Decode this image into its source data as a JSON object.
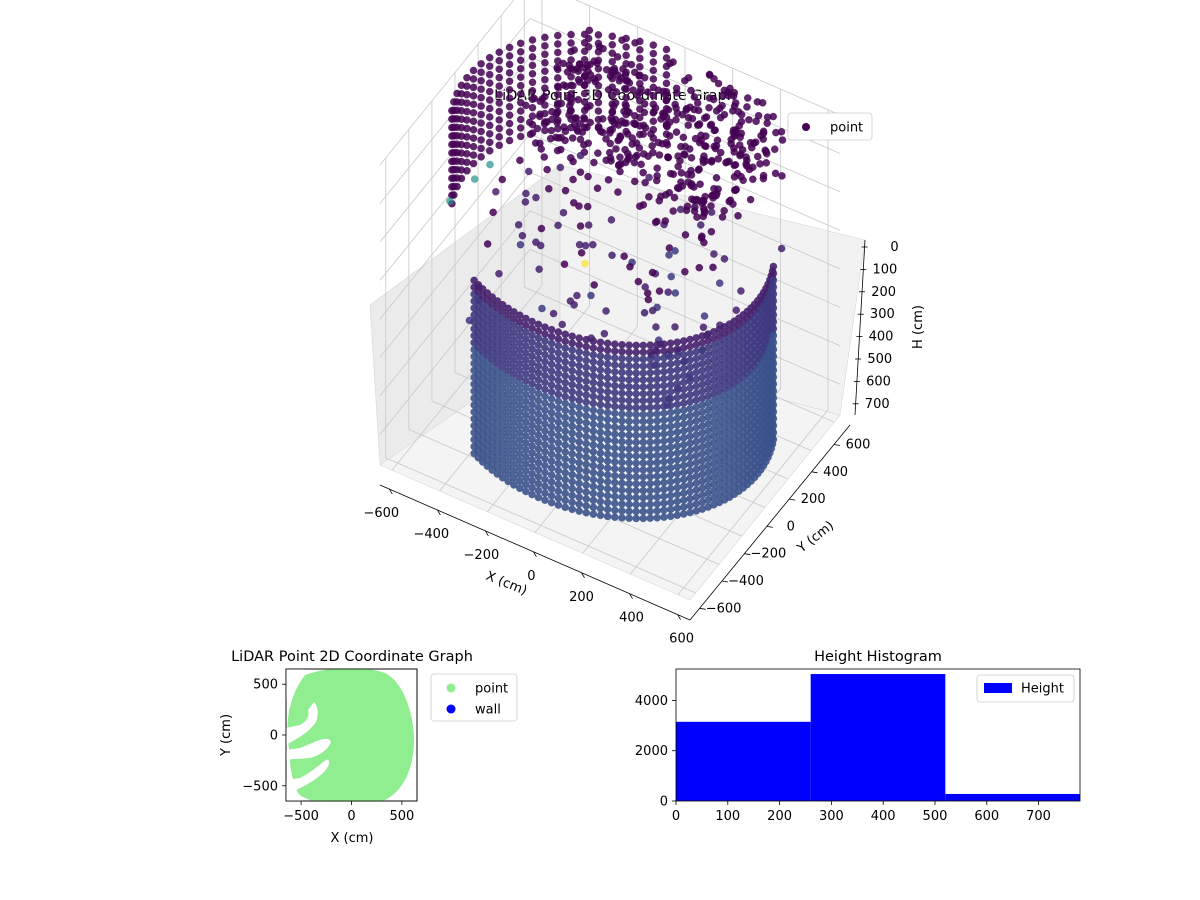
{
  "colors": {
    "viridis_low": "#440154",
    "viridis_mid": "#3b528b",
    "viridis_teal": "#21918c",
    "viridis_high": "#fde725",
    "point_2d": "#90ee90",
    "wall_2d": "#0000ff",
    "histogram": "#0000ff"
  },
  "chart_data": [
    {
      "type": "scatter",
      "projection": "3d",
      "title": "LiDAR Point 3D Coordinate Graph",
      "xlabel": "X (cm)",
      "ylabel": "Y (cm)",
      "zlabel": "H (cm)",
      "x_ticks": [
        "−600",
        "−400",
        "−200",
        "0",
        "200",
        "400",
        "600"
      ],
      "y_ticks": [
        "−600",
        "−400",
        "−200",
        "0",
        "200",
        "400",
        "600"
      ],
      "z_ticks": [
        "0",
        "100",
        "200",
        "300",
        "400",
        "500",
        "600",
        "700"
      ],
      "xlim": [
        -650,
        650
      ],
      "ylim": [
        -650,
        650
      ],
      "zlim": [
        0,
        780
      ],
      "z_inverted": true,
      "colormap": "viridis",
      "legend": {
        "entries": [
          "point"
        ],
        "placement": "upper right"
      },
      "grid": true,
      "outlier_points": [
        {
          "x": -640,
          "y": 150,
          "h": 330
        },
        {
          "x": -600,
          "y": 200,
          "h": 300
        },
        {
          "x": -710,
          "y": 80,
          "h": 380
        },
        {
          "x": -250,
          "y": 300,
          "h": 500
        }
      ]
    },
    {
      "type": "scatter",
      "title": "LiDAR Point 2D Coordinate Graph",
      "xlabel": "X (cm)",
      "ylabel": "Y (cm)",
      "x_ticks": [
        "−500",
        "0",
        "500"
      ],
      "y_ticks": [
        "500",
        "0",
        "−500"
      ],
      "xlim": [
        -650,
        650
      ],
      "ylim": [
        -650,
        650
      ],
      "series": [
        {
          "name": "point",
          "color": "#90ee90",
          "shape": "disc approx. radius 620 with gaps on the left side"
        },
        {
          "name": "wall",
          "color": "#0000ff",
          "values": []
        }
      ],
      "legend": {
        "entries": [
          "point",
          "wall"
        ],
        "placement": "outside right"
      }
    },
    {
      "type": "bar",
      "title": "Height Histogram",
      "xlabel": "",
      "ylabel": "",
      "bins": [
        [
          0,
          260
        ],
        [
          260,
          520
        ],
        [
          520,
          780
        ]
      ],
      "values": [
        3150,
        5050,
        280
      ],
      "x_ticks": [
        "0",
        "100",
        "200",
        "300",
        "400",
        "500",
        "600",
        "700"
      ],
      "y_ticks": [
        "0",
        "2000",
        "4000"
      ],
      "xlim": [
        0,
        780
      ],
      "ylim": [
        0,
        5250
      ],
      "legend": {
        "entries": [
          "Height"
        ],
        "placement": "upper right"
      }
    }
  ]
}
